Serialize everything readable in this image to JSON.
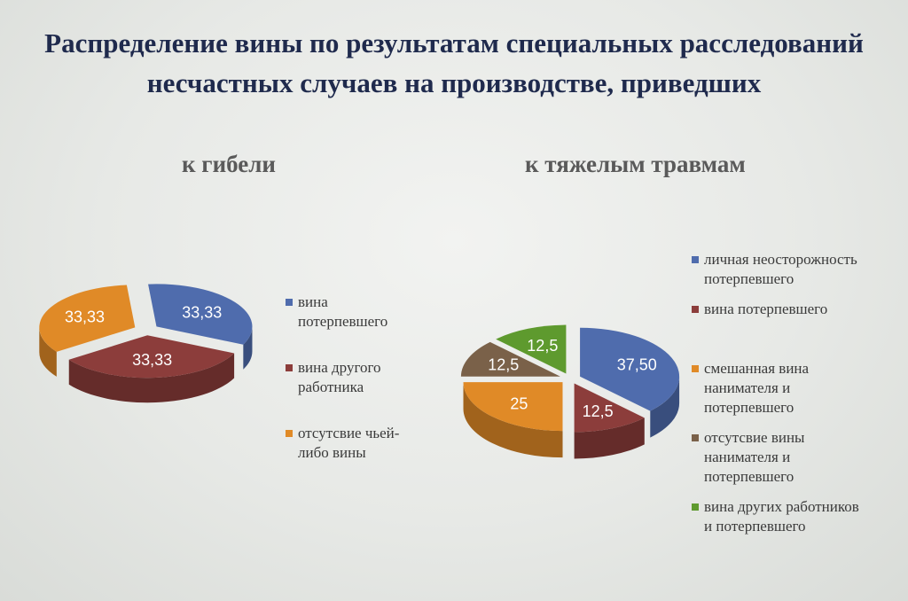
{
  "title": "Распределение вины по результатам специальных расследований несчастных случаев на производстве, приведших",
  "chart_data": [
    {
      "type": "pie",
      "subtitle": "к гибели",
      "categories": [
        "вина потерпевшего",
        "вина другого работника",
        "отсутсвие чьей-либо вины"
      ],
      "values": [
        33.33,
        33.33,
        33.33
      ],
      "value_labels": [
        "33,33",
        "33,33",
        "33,33"
      ],
      "colors": [
        "#4f6cad",
        "#8c3d3b",
        "#e08a27"
      ],
      "legend_placement": "right"
    },
    {
      "type": "pie",
      "subtitle": "к тяжелым травмам",
      "categories": [
        "личная неосторожность потерпевшего",
        "вина потерпевшего",
        "смешанная вина нанимателя и потерпевшего",
        "отсутсвие вины нанимателя и потерпевшего",
        "вина  других работников и потерпевшего"
      ],
      "values": [
        37.5,
        12.5,
        25,
        12.5,
        12.5
      ],
      "value_labels": [
        "37,50",
        "12,5",
        "25",
        "12,5",
        "12,5"
      ],
      "colors": [
        "#4f6cad",
        "#8c3d3b",
        "#e08a27",
        "#7a6149",
        "#5e9a2e"
      ],
      "legend_placement": "right"
    }
  ]
}
